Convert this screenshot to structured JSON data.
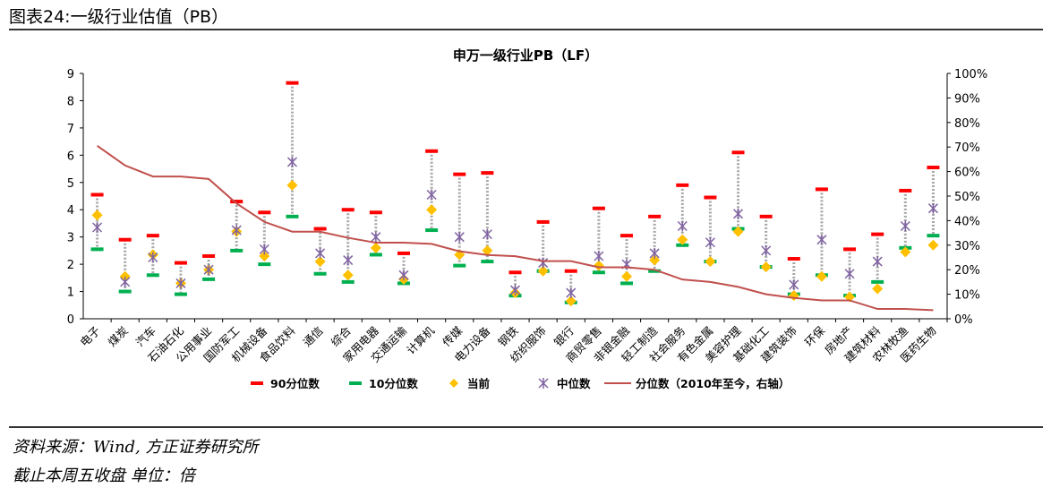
{
  "figure_title": "图表24:一级行业估值（PB）",
  "source": "资料来源：Wind, 方正证券研究所",
  "note": "截止本周五收盘 单位：倍",
  "colors": {
    "p90": "#ff0000",
    "p10": "#00b050",
    "current": "#ffc000",
    "median": "#8064a2",
    "line": "#c0504d"
  },
  "chart_data": {
    "type": "line",
    "title": "申万一级行业PB（LF）",
    "ylim": [
      0,
      9
    ],
    "yticks": [
      "0",
      "1",
      "2",
      "3",
      "4",
      "5",
      "6",
      "7",
      "8",
      "9"
    ],
    "y2lim": [
      0,
      100
    ],
    "y2ticks": [
      "0%",
      "10%",
      "20%",
      "30%",
      "40%",
      "50%",
      "60%",
      "70%",
      "80%",
      "90%",
      "100%"
    ],
    "categories": [
      "电子",
      "煤炭",
      "汽车",
      "石油石化",
      "公用事业",
      "国防军工",
      "机械设备",
      "食品饮料",
      "通信",
      "综合",
      "家用电器",
      "交通运输",
      "计算机",
      "传媒",
      "电力设备",
      "钢铁",
      "纺织服饰",
      "银行",
      "商贸零售",
      "非银金融",
      "轻工制造",
      "社会服务",
      "有色金属",
      "美容护理",
      "基础化工",
      "建筑装饰",
      "环保",
      "房地产",
      "建筑材料",
      "农林牧渔",
      "医药生物"
    ],
    "legend": [
      "90分位数",
      "10分位数",
      "当前",
      "中位数",
      "分位数（2010年至今，右轴）"
    ],
    "series": [
      {
        "name": "90分位数",
        "values": [
          4.55,
          2.9,
          3.05,
          2.05,
          2.3,
          4.3,
          3.9,
          8.65,
          3.3,
          4.0,
          3.9,
          2.4,
          6.15,
          5.3,
          5.35,
          1.7,
          3.55,
          1.75,
          4.05,
          3.05,
          3.75,
          4.9,
          4.45,
          6.1,
          3.75,
          2.2,
          4.75,
          2.55,
          3.1,
          4.7,
          5.55
        ]
      },
      {
        "name": "10分位数",
        "values": [
          2.55,
          1.0,
          1.6,
          0.9,
          1.45,
          2.5,
          2.0,
          3.75,
          1.65,
          1.35,
          2.35,
          1.3,
          3.25,
          1.95,
          2.1,
          0.85,
          1.75,
          0.6,
          1.7,
          1.3,
          1.75,
          2.7,
          2.1,
          3.3,
          1.9,
          0.9,
          1.6,
          0.85,
          1.35,
          2.6,
          3.05
        ]
      },
      {
        "name": "当前",
        "values": [
          3.8,
          1.55,
          2.35,
          1.3,
          1.8,
          3.2,
          2.3,
          4.9,
          2.1,
          1.6,
          2.6,
          1.45,
          4.0,
          2.35,
          2.5,
          0.95,
          1.75,
          0.65,
          1.95,
          1.55,
          2.15,
          2.9,
          2.1,
          3.2,
          1.9,
          0.85,
          1.55,
          0.8,
          1.1,
          2.45,
          2.7
        ]
      },
      {
        "name": "中位数",
        "values": [
          3.35,
          1.35,
          2.25,
          1.3,
          1.8,
          3.25,
          2.55,
          5.75,
          2.4,
          2.15,
          3.0,
          1.6,
          4.55,
          3.0,
          3.1,
          1.05,
          2.05,
          0.95,
          2.3,
          2.0,
          2.4,
          3.4,
          2.8,
          3.85,
          2.5,
          1.25,
          2.9,
          1.65,
          2.1,
          3.4,
          4.05
        ]
      },
      {
        "name": "分位数（2010年至今，右轴）",
        "axis": "right",
        "values": [
          70.5,
          62.5,
          58,
          58,
          57,
          47,
          39.5,
          35.5,
          35.5,
          33,
          31,
          31,
          30.5,
          27.5,
          26,
          25.5,
          23.5,
          23.5,
          21,
          21,
          20,
          16,
          15,
          13,
          10,
          8.5,
          7.5,
          7.5,
          4,
          4,
          3.5
        ]
      }
    ]
  }
}
